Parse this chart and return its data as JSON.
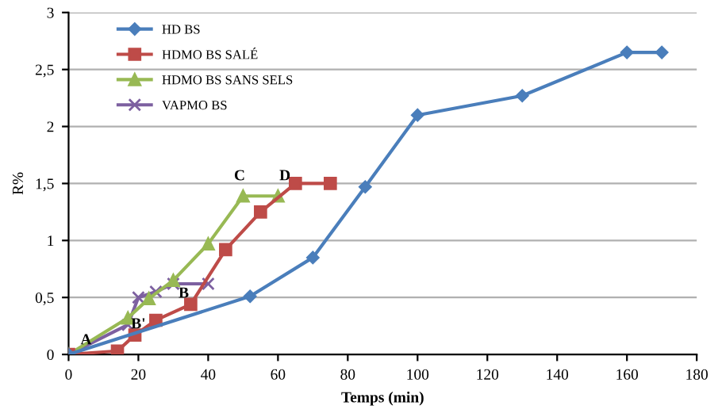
{
  "chart_data": {
    "type": "line",
    "xlabel": "Temps (min)",
    "ylabel": "R%",
    "xlim": [
      0,
      180
    ],
    "xticks": [
      0,
      20,
      40,
      60,
      80,
      100,
      120,
      140,
      160,
      180
    ],
    "ylim": [
      0,
      3
    ],
    "yticks": [
      {
        "value": 0,
        "label": "0"
      },
      {
        "value": 0.5,
        "label": "0,5"
      },
      {
        "value": 1,
        "label": "1"
      },
      {
        "value": 1.5,
        "label": "1,5"
      },
      {
        "value": 2,
        "label": "2"
      },
      {
        "value": 2.5,
        "label": "2,5"
      },
      {
        "value": 3,
        "label": "3"
      }
    ],
    "grid": "y",
    "legend": "top left",
    "series": [
      {
        "name": "HD BS",
        "color": "#4a7ebb",
        "marker": "diamond",
        "x": [
          0,
          52,
          70,
          85,
          100,
          130,
          160,
          170
        ],
        "values": [
          0,
          0.51,
          0.85,
          1.47,
          2.1,
          2.27,
          2.65,
          2.65
        ]
      },
      {
        "name": "HDMO BS SALÉ",
        "color": "#be4b48",
        "marker": "square",
        "x": [
          0,
          14,
          19,
          25,
          35,
          45,
          55,
          65,
          75
        ],
        "values": [
          0,
          0.03,
          0.17,
          0.3,
          0.44,
          0.92,
          1.25,
          1.5,
          1.5
        ]
      },
      {
        "name": "HDMO BS SANS SELS",
        "color": "#98b954",
        "marker": "triangle",
        "x": [
          0,
          17,
          23,
          30,
          40,
          50,
          60
        ],
        "values": [
          0,
          0.32,
          0.49,
          0.65,
          0.97,
          1.39,
          1.39
        ]
      },
      {
        "name": "VAPMO BS",
        "color": "#7d60a0",
        "marker": "cross",
        "x": [
          0,
          17,
          20,
          25,
          30,
          40
        ],
        "values": [
          0,
          0.26,
          0.5,
          0.55,
          0.62,
          0.62
        ]
      }
    ],
    "annotations": [
      {
        "text": "A",
        "x": 5,
        "y": 0.06
      },
      {
        "text": "B'",
        "x": 20,
        "y": 0.2
      },
      {
        "text": "B",
        "x": 33,
        "y": 0.47
      },
      {
        "text": "C",
        "x": 49,
        "y": 1.5
      },
      {
        "text": "D",
        "x": 62,
        "y": 1.5
      }
    ]
  }
}
